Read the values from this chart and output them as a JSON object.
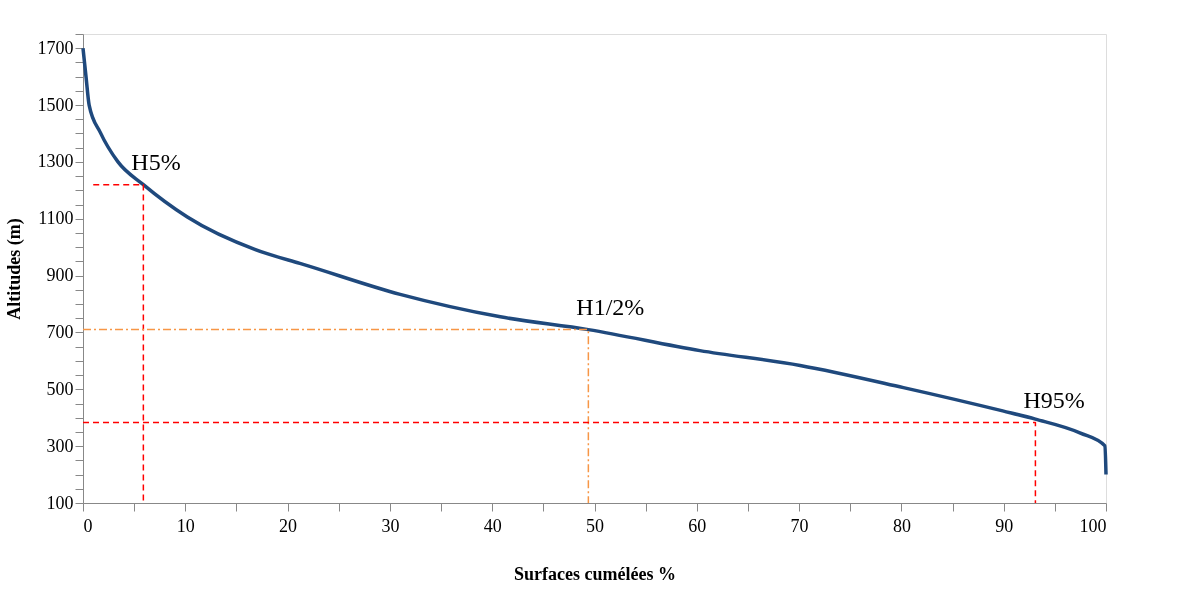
{
  "chart_data": {
    "type": "line",
    "xlabel": "Surfaces cumélées %",
    "ylabel": "Altitudes (m)",
    "x": [
      0,
      0.3,
      0.6,
      1.7,
      3.4,
      5.9,
      10.2,
      18,
      21.2,
      31,
      40.8,
      49.4,
      60.3,
      70.1,
      80.2,
      89.9,
      93.1,
      97.5,
      99.9,
      100
    ],
    "series": [
      {
        "color": "#1f497d",
        "values": [
          1700,
          1598,
          1500,
          1403,
          1301,
          1220,
          1106,
          977,
          943,
          834,
          755,
          710,
          636,
          584,
          506,
          424,
          395,
          346,
          301,
          200
        ]
      },
      {
        "type": "line",
        "x": [
          1,
          5.9,
          5.9
        ],
        "values": [
          1220,
          1220,
          100
        ],
        "color": "#ff0000",
        "line_style": "dashed"
      },
      {
        "type": "line",
        "x": [
          0,
          49.4,
          49.4
        ],
        "values": [
          710,
          710,
          100
        ],
        "color": "#f79646",
        "line_style": "dashdot"
      },
      {
        "type": "line",
        "x": [
          0,
          93.1,
          93.1
        ],
        "values": [
          383,
          383,
          100
        ],
        "color": "#ff0000",
        "line_style": "dashed"
      }
    ],
    "xlim": [
      0,
      100
    ],
    "xticks": [
      0,
      {
        "value": 5,
        "label": null
      },
      10,
      {
        "value": 15,
        "label": null
      },
      20,
      {
        "value": 25,
        "label": null
      },
      30,
      {
        "value": 35,
        "label": null
      },
      40,
      {
        "value": 45,
        "label": null
      },
      50,
      {
        "value": 55,
        "label": null
      },
      60,
      {
        "value": 65,
        "label": null
      },
      70,
      {
        "value": 75,
        "label": null
      },
      80,
      {
        "value": 85,
        "label": null
      },
      90,
      {
        "value": 95,
        "label": null
      },
      100
    ],
    "ylim": [
      100,
      1750
    ],
    "yticks": [
      100,
      {
        "value": 150,
        "label": null
      },
      {
        "value": 200,
        "label": null
      },
      {
        "value": 250,
        "label": null
      },
      300,
      {
        "value": 350,
        "label": null
      },
      {
        "value": 400,
        "label": null
      },
      {
        "value": 450,
        "label": null
      },
      500,
      {
        "value": 550,
        "label": null
      },
      {
        "value": 600,
        "label": null
      },
      {
        "value": 650,
        "label": null
      },
      700,
      {
        "value": 750,
        "label": null
      },
      {
        "value": 800,
        "label": null
      },
      {
        "value": 850,
        "label": null
      },
      900,
      {
        "value": 950,
        "label": null
      },
      {
        "value": 1000,
        "label": null
      },
      {
        "value": 1050,
        "label": null
      },
      1100,
      {
        "value": 1150,
        "label": null
      },
      {
        "value": 1200,
        "label": null
      },
      {
        "value": 1250,
        "label": null
      },
      1300,
      {
        "value": 1350,
        "label": null
      },
      {
        "value": 1400,
        "label": null
      },
      {
        "value": 1450,
        "label": null
      },
      1500,
      {
        "value": 1550,
        "label": null
      },
      {
        "value": 1600,
        "label": null
      },
      {
        "value": 1650,
        "label": null
      },
      1700,
      {
        "value": 1750,
        "label": null
      }
    ],
    "annotations": [
      {
        "text": "H5%",
        "x": 5.9,
        "y": 1220
      },
      {
        "text": "H1/2%",
        "x": 49.4,
        "y": 710
      },
      {
        "text": "H95%",
        "x": 93.1,
        "y": 383
      }
    ],
    "marker": "none",
    "line_style": "solid"
  }
}
